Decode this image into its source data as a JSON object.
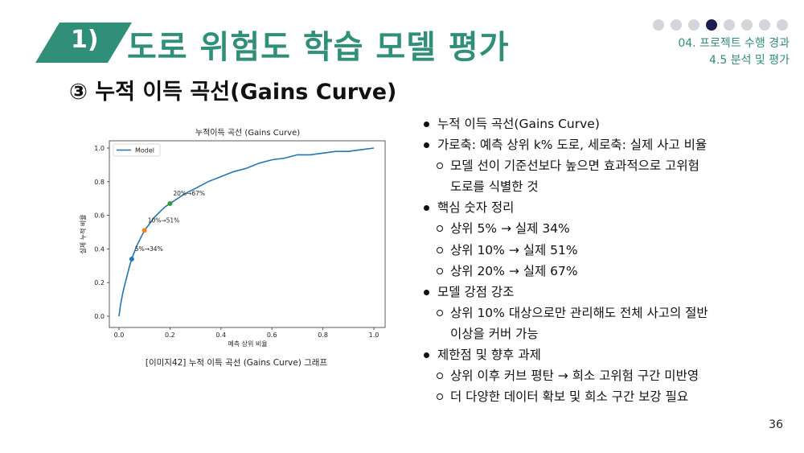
{
  "header": {
    "section_number": "1)",
    "title": "도로 위험도 학습 모델 평가",
    "progress_dots": {
      "total": 8,
      "active_index": 3
    },
    "section_label_line1": "04. 프로젝트 수행 경과",
    "section_label_line2": "4.5 분석 및 평가"
  },
  "subtitle": "③ 누적 이득 곡선(Gains Curve)",
  "chart_data": {
    "type": "line",
    "title": "누적이득 곡선 (Gains Curve)",
    "xlabel": "예측 상위 비율",
    "ylabel": "실제 누적 비율",
    "xlim": [
      0,
      1
    ],
    "ylim": [
      0,
      1
    ],
    "x_ticks": [
      "0.0",
      "0.2",
      "0.4",
      "0.6",
      "0.8",
      "1.0"
    ],
    "y_ticks": [
      "0.0",
      "0.2",
      "0.4",
      "0.6",
      "0.8",
      "1.0"
    ],
    "legend": "top-left",
    "series": [
      {
        "name": "Model",
        "color": "#1f77b4",
        "x": [
          0,
          0.002,
          0.005,
          0.01,
          0.015,
          0.02,
          0.03,
          0.04,
          0.05,
          0.06,
          0.07,
          0.08,
          0.09,
          0.1,
          0.12,
          0.14,
          0.16,
          0.18,
          0.2,
          0.23,
          0.26,
          0.3,
          0.35,
          0.4,
          0.45,
          0.5,
          0.55,
          0.6,
          0.65,
          0.7,
          0.75,
          0.8,
          0.85,
          0.9,
          0.95,
          1.0
        ],
        "y": [
          0,
          0.02,
          0.06,
          0.1,
          0.14,
          0.17,
          0.23,
          0.29,
          0.34,
          0.38,
          0.42,
          0.45,
          0.48,
          0.51,
          0.55,
          0.59,
          0.62,
          0.65,
          0.67,
          0.7,
          0.73,
          0.76,
          0.8,
          0.83,
          0.86,
          0.88,
          0.91,
          0.93,
          0.94,
          0.96,
          0.96,
          0.97,
          0.98,
          0.98,
          0.99,
          1.0
        ]
      }
    ],
    "markers": [
      {
        "x": 0.05,
        "y": 0.34,
        "label": "5%→34%",
        "color": "#1f77b4"
      },
      {
        "x": 0.1,
        "y": 0.51,
        "label": "10%→51%",
        "color": "#ff7f0e"
      },
      {
        "x": 0.2,
        "y": 0.67,
        "label": "20%→67%",
        "color": "#2ca02c"
      }
    ]
  },
  "chart_caption": "[이미지42] 누적 이득 곡선 (Gains Curve) 그래프",
  "bullets": [
    {
      "level": 1,
      "text": "누적 이득 곡선(Gains Curve)"
    },
    {
      "level": 1,
      "text": "가로축: 예측 상위 k% 도로, 세로축: 실제 사고 비율"
    },
    {
      "level": 2,
      "text": "모델 선이 기준선보다 높으면 효과적으로 고위험"
    },
    {
      "level": 0,
      "text": "도로를 식별한 것"
    },
    {
      "level": 1,
      "text": "핵심 숫자 정리"
    },
    {
      "level": 2,
      "text": "상위 5% → 실제 34%"
    },
    {
      "level": 2,
      "text": "상위 10% → 실제 51%"
    },
    {
      "level": 2,
      "text": "상위 20% → 실제 67%"
    },
    {
      "level": 1,
      "text": "모델 강점 강조"
    },
    {
      "level": 2,
      "text": "상위 10% 대상으로만 관리해도 전체 사고의 절반"
    },
    {
      "level": 0,
      "text": "이상을 커버 가능"
    },
    {
      "level": 1,
      "text": "제한점 및 향후 과제"
    },
    {
      "level": 2,
      "text": "상위 이후 커브 평탄 → 희소 고위험 구간 미반영"
    },
    {
      "level": 2,
      "text": "더 다양한 데이터 확보 및 희소 구간 보강 필요"
    }
  ],
  "page_number": "36"
}
